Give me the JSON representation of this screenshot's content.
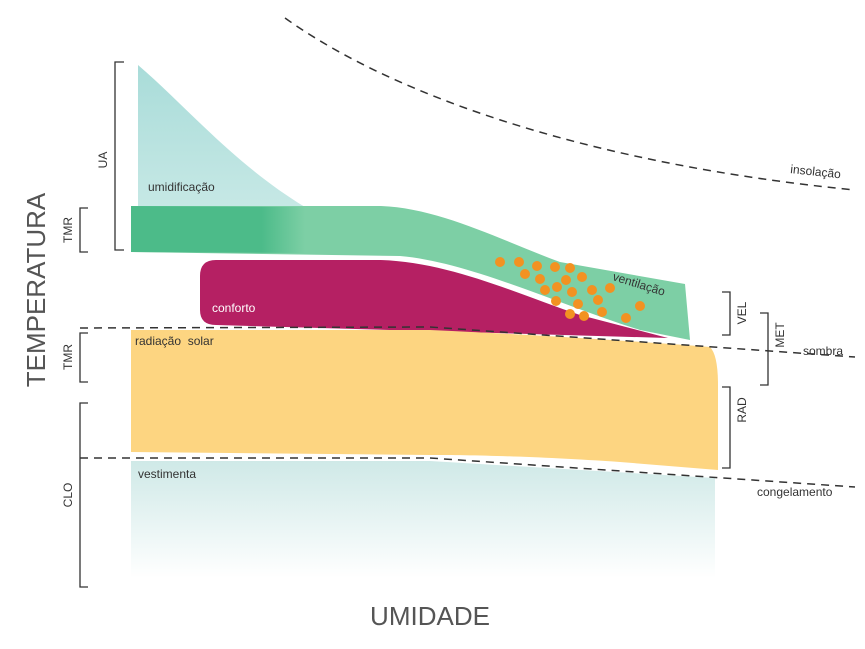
{
  "axes": {
    "y_label": "TEMPERATURA",
    "x_label": "UMIDADE"
  },
  "regions": {
    "humidification": "umidificação",
    "comfort": "conforto",
    "ventilation": "ventilação",
    "solar_radiation": "radiação  solar",
    "clothing": "vestimenta"
  },
  "lines": {
    "insolation": "insolação",
    "shade": "sombra",
    "freezing": "congelamento"
  },
  "brackets": {
    "left": [
      "UA",
      "TMR",
      "TMR",
      "CLO"
    ],
    "right": [
      "VEL",
      "MET",
      "RAD"
    ]
  }
}
